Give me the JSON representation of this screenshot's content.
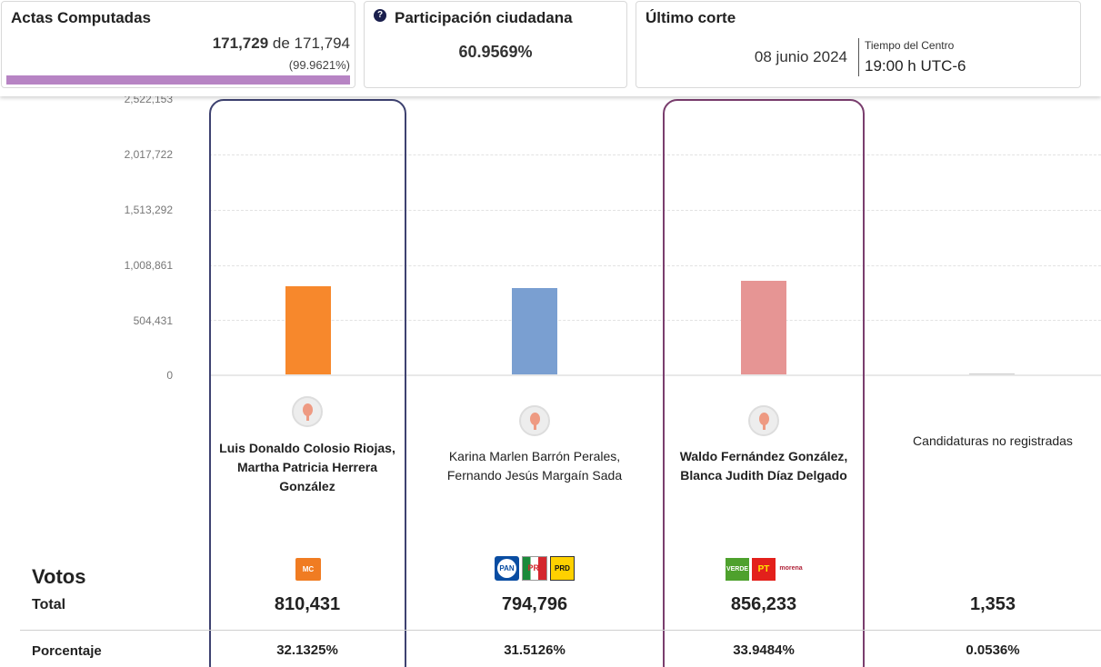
{
  "actas": {
    "title": "Actas Computadas",
    "computed": "171,729",
    "of_label": "de",
    "total": "171,794",
    "percent": "(99.9621%)",
    "progress_fraction": 0.9996
  },
  "participacion": {
    "title": "Participación ciudadana",
    "value": "60.9569%",
    "help_icon": "help-circle-icon"
  },
  "ultimo_corte": {
    "title": "Último corte",
    "date": "08 junio 2024",
    "tz_label": "Tiempo del Centro",
    "time": "19:00 h UTC-6"
  },
  "chart_data": {
    "type": "bar",
    "categories": [
      "Luis Donaldo Colosio Riojas, Martha Patricia Herrera González",
      "Karina Marlen Barrón Perales, Fernando Jesús Margaín Sada",
      "Waldo Fernández González, Blanca Judith Díaz Delgado",
      "Candidaturas no registradas"
    ],
    "values": [
      810431,
      794796,
      856233,
      1353
    ],
    "y_ticks": [
      "0",
      "504,431",
      "1,008,861",
      "1,513,292",
      "2,017,722",
      "2,522,153"
    ],
    "y_tick_values": [
      0,
      504431,
      1008861,
      1513292,
      2017722,
      2522153
    ],
    "ylim": [
      0,
      2522153
    ],
    "colors": [
      "#f7882c",
      "#7a9fd1",
      "#e69594",
      "#cccccc"
    ],
    "grid": true
  },
  "candidates": [
    {
      "name_line1": "Luis Donaldo Colosio Riojas,",
      "name_line2": "Martha Patricia Herrera",
      "name_line3": "González",
      "parties": [
        "Movimiento Ciudadano"
      ],
      "total": "810,431",
      "percent": "32.1325%",
      "highlight_color": "#3e4270"
    },
    {
      "name_line1": "Karina Marlen Barrón Perales,",
      "name_line2": "Fernando Jesús Margaín Sada",
      "parties": [
        "PAN",
        "PRI",
        "PRD"
      ],
      "total": "794,796",
      "percent": "31.5126%"
    },
    {
      "name_line1": "Waldo Fernández González,",
      "name_line2": "Blanca Judith Díaz Delgado",
      "parties": [
        "VERDE",
        "PT",
        "morena"
      ],
      "total": "856,233",
      "percent": "33.9484%",
      "highlight_color": "#7a3e6e"
    },
    {
      "name_line1": "Candidaturas no registradas",
      "total": "1,353",
      "percent": "0.0536%"
    }
  ],
  "logos": {
    "mc": "MC",
    "pan": "PAN",
    "pri": "PRI",
    "prd": "PRD",
    "verde": "VERDE",
    "pt": "PT",
    "morena": "morena"
  },
  "votes": {
    "title": "Votos",
    "total_label": "Total",
    "percent_label": "Porcentaje"
  }
}
